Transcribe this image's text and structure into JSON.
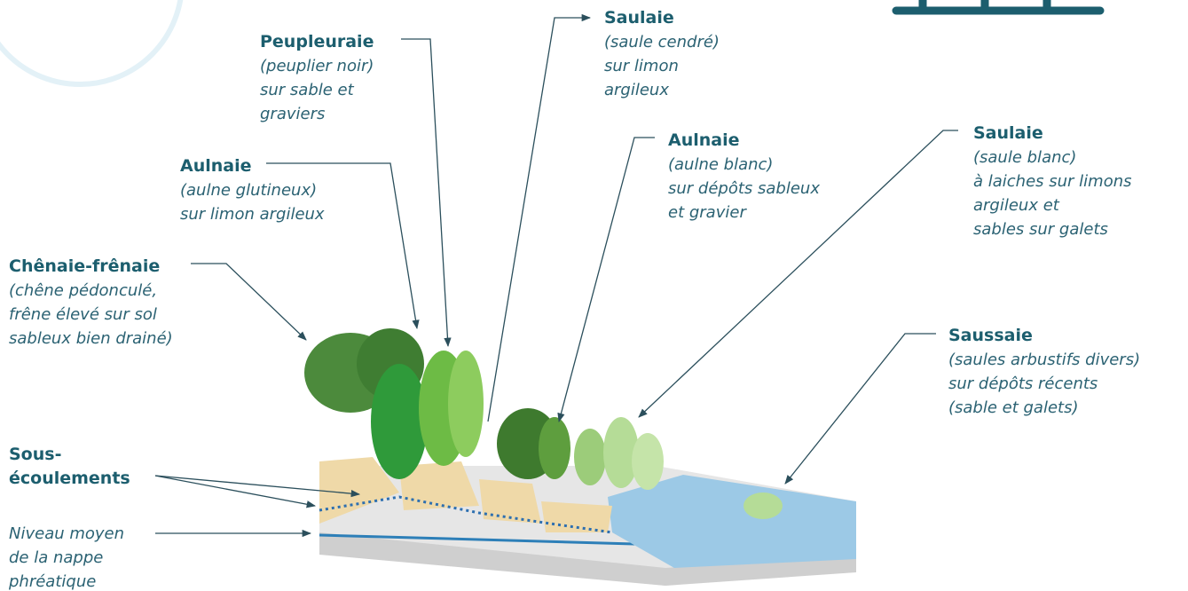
{
  "labels": [
    {
      "title": [
        "Peupleuraie"
      ],
      "text": [
        "(peuplier noir)",
        "sur sable et",
        "graviers"
      ]
    },
    {
      "title": [
        "Aulnaie"
      ],
      "text": [
        "(aulne glutineux)",
        "sur limon argileux"
      ]
    },
    {
      "title": [
        "Chênaie-frênaie"
      ],
      "text": [
        "(chêne pédonculé,",
        "frêne élevé sur sol",
        "sableux bien drainé)"
      ]
    },
    {
      "title": [
        "Sous-",
        "écoulements"
      ],
      "text": []
    },
    {
      "title": [],
      "text": [
        "Niveau moyen",
        "de la nappe",
        "phréatique"
      ]
    },
    {
      "title": [
        "Saulaie"
      ],
      "text": [
        "(saule cendré)",
        "sur limon",
        "argileux"
      ]
    },
    {
      "title": [
        "Aulnaie"
      ],
      "text": [
        "(aulne blanc)",
        "sur dépôts sableux",
        "et gravier"
      ]
    },
    {
      "title": [
        "Saulaie"
      ],
      "text": [
        "(saule blanc)",
        "à laiches sur limons",
        "argileux et",
        "sables sur galets"
      ]
    },
    {
      "title": [
        "Saussaie"
      ],
      "text": [
        "(saules arbustifs divers)",
        "sur dépôts récents",
        "(sable et galets)"
      ]
    }
  ]
}
